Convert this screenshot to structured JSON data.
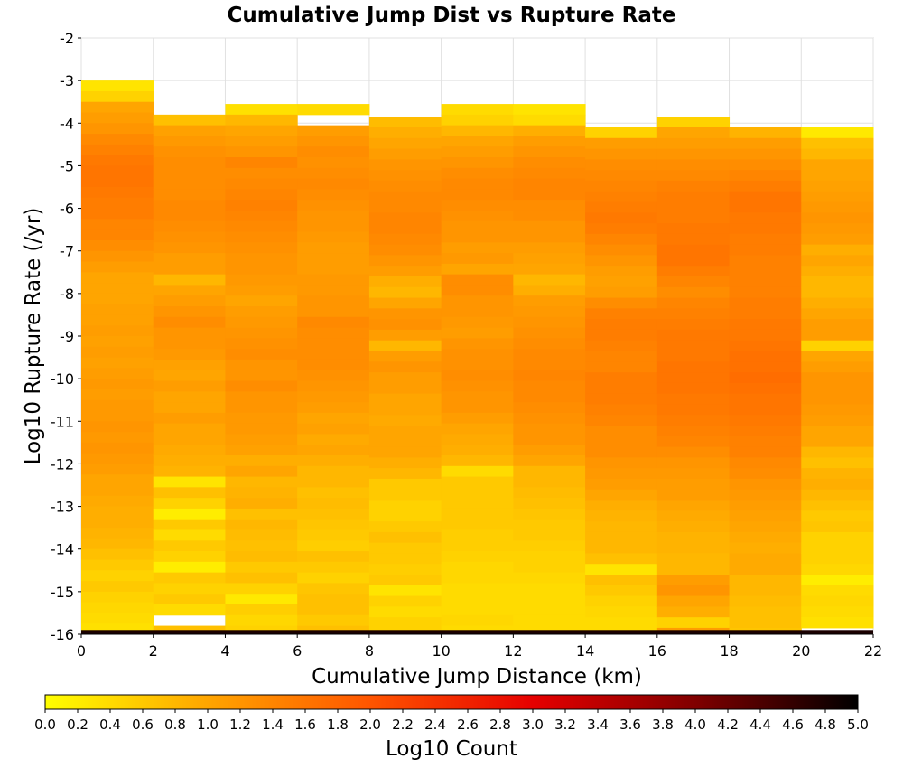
{
  "chart_data": {
    "type": "heatmap",
    "title": "Cumulative Jump Dist vs Rupture Rate",
    "xlabel": "Cumulative Jump Distance (km)",
    "ylabel": "Log10 Rupture Rate (/yr)",
    "xlim": [
      0,
      22
    ],
    "ylim": [
      -16,
      -2
    ],
    "x_ticks": [
      "0",
      "2",
      "4",
      "6",
      "8",
      "10",
      "12",
      "14",
      "16",
      "18",
      "20",
      "22"
    ],
    "y_ticks": [
      "-2",
      "-3",
      "-4",
      "-5",
      "-6",
      "-7",
      "-8",
      "-9",
      "-10",
      "-11",
      "-12",
      "-13",
      "-14",
      "-15",
      "-16"
    ],
    "x_bin_edges": [
      0,
      2,
      4,
      6,
      8,
      10,
      12,
      14,
      16,
      18,
      20,
      22
    ],
    "y_bin_size": 0.25,
    "colorbar": {
      "label": "Log10 Count",
      "range": [
        0,
        5
      ],
      "ticks": [
        "0.0",
        "0.2",
        "0.4",
        "0.6",
        "0.8",
        "1.0",
        "1.2",
        "1.4",
        "1.6",
        "1.8",
        "2.0",
        "2.2",
        "2.4",
        "2.6",
        "2.8",
        "3.0",
        "3.2",
        "3.4",
        "3.6",
        "3.8",
        "4.0",
        "4.2",
        "4.4",
        "4.6",
        "4.8",
        "5.0"
      ],
      "colors": [
        "#ffff00",
        "#ffa500",
        "#ff5500",
        "#e60000",
        "#800000",
        "#000000"
      ]
    },
    "columns": [
      {
        "x_range": [
          0,
          2
        ],
        "y_top": -3.0,
        "values": [
          0.3,
          0.5,
          1.0,
          1.1,
          1.2,
          1.35,
          1.45,
          1.55,
          1.6,
          1.6,
          1.55,
          1.5,
          1.5,
          1.4,
          1.4,
          1.3,
          1.2,
          1.1,
          1.0,
          1.0,
          1.0,
          1.05,
          1.05,
          1.1,
          1.05,
          1.1,
          1.05,
          1.1,
          1.15,
          1.1,
          1.15,
          1.15,
          1.2,
          1.15,
          1.2,
          1.15,
          1.1,
          1.0,
          1.0,
          0.95,
          0.9,
          0.9,
          0.85,
          0.8,
          0.7,
          0.6,
          0.5,
          0.6,
          0.5,
          0.45,
          0.4,
          0.35
        ]
      },
      {
        "x_range": [
          2,
          4
        ],
        "y_top": -3.8,
        "values": [
          0.7,
          1.05,
          1.15,
          1.25,
          1.3,
          1.3,
          1.3,
          1.3,
          1.35,
          1.35,
          1.3,
          1.25,
          1.2,
          1.1,
          1.1,
          0.8,
          1.0,
          1.1,
          1.2,
          1.3,
          1.2,
          1.2,
          1.15,
          1.05,
          1.0,
          1.1,
          1.0,
          1.0,
          1.1,
          1.0,
          1.0,
          0.95,
          0.9,
          0.85,
          0.3,
          0.7,
          0.5,
          0.2,
          0.6,
          0.4,
          0.6,
          0.5,
          0.2,
          0.6,
          0.5,
          0.6,
          0.4,
          -1,
          0.7,
          0.55,
          0.5
        ]
      },
      {
        "x_range": [
          4,
          6
        ],
        "y_top": -3.55,
        "values": [
          0.35,
          0.8,
          1.0,
          1.1,
          1.2,
          1.4,
          1.3,
          1.35,
          1.4,
          1.45,
          1.4,
          1.35,
          1.3,
          1.25,
          1.2,
          1.2,
          1.15,
          1.1,
          1.0,
          1.1,
          1.15,
          1.2,
          1.25,
          1.3,
          1.2,
          1.2,
          1.3,
          1.2,
          1.2,
          1.15,
          1.15,
          1.1,
          1.05,
          0.9,
          1.0,
          0.8,
          0.85,
          0.9,
          0.7,
          0.8,
          0.75,
          0.7,
          0.75,
          0.6,
          0.7,
          0.5,
          0.25,
          0.55,
          0.45,
          0.5,
          -1,
          -1
        ]
      },
      {
        "x_range": [
          6,
          8
        ],
        "y_top": -3.55,
        "values": [
          0.4,
          -1,
          1.1,
          1.2,
          1.3,
          1.25,
          1.3,
          1.35,
          1.3,
          1.25,
          1.2,
          1.2,
          1.15,
          1.1,
          1.1,
          1.1,
          1.15,
          1.15,
          1.2,
          1.2,
          1.35,
          1.3,
          1.3,
          1.3,
          1.3,
          1.25,
          1.2,
          1.15,
          1.1,
          1.0,
          1.05,
          0.95,
          1.0,
          0.9,
          0.8,
          0.8,
          0.7,
          0.75,
          0.7,
          0.65,
          0.6,
          0.55,
          0.7,
          0.6,
          0.5,
          0.65,
          0.7,
          0.7,
          0.6,
          0.7,
          0.35,
          0.35
        ]
      },
      {
        "x_range": [
          8,
          10
        ],
        "y_top": -3.85,
        "values": [
          0.75,
          0.9,
          1.0,
          1.1,
          1.2,
          1.25,
          1.3,
          1.35,
          1.35,
          1.4,
          1.4,
          1.35,
          1.3,
          1.2,
          1.1,
          0.9,
          0.8,
          1.0,
          1.2,
          1.25,
          1.1,
          0.8,
          1.1,
          1.2,
          1.1,
          1.1,
          1.0,
          1.0,
          0.95,
          1.0,
          1.0,
          1.0,
          0.9,
          0.8,
          0.6,
          0.6,
          0.5,
          0.5,
          0.6,
          0.7,
          0.6,
          0.6,
          0.55,
          0.6,
          0.3,
          0.5,
          0.4,
          0.5,
          0.5,
          0.55,
          0.35
        ]
      },
      {
        "x_range": [
          10,
          12
        ],
        "y_top": -3.55,
        "values": [
          0.4,
          0.5,
          0.8,
          1.0,
          1.1,
          1.2,
          1.3,
          1.35,
          1.35,
          1.3,
          1.25,
          1.2,
          1.2,
          1.1,
          1.15,
          1.0,
          1.3,
          1.3,
          1.2,
          1.2,
          1.15,
          1.1,
          1.2,
          1.25,
          1.25,
          1.3,
          1.25,
          1.2,
          1.2,
          1.1,
          1.0,
          0.95,
          0.9,
          0.8,
          0.4,
          0.6,
          0.6,
          0.6,
          0.6,
          0.6,
          0.55,
          0.55,
          0.5,
          0.45,
          0.45,
          0.4,
          0.4,
          0.4,
          0.45,
          0.4,
          0.3,
          0.3
        ]
      },
      {
        "x_range": [
          12,
          14
        ],
        "y_top": -3.55,
        "values": [
          0.3,
          0.4,
          0.9,
          1.1,
          1.2,
          1.3,
          1.35,
          1.4,
          1.4,
          1.3,
          1.3,
          1.2,
          1.2,
          1.1,
          1.05,
          1.0,
          0.8,
          0.9,
          1.1,
          1.15,
          1.2,
          1.25,
          1.3,
          1.35,
          1.35,
          1.4,
          1.35,
          1.35,
          1.3,
          1.25,
          1.2,
          1.2,
          1.1,
          1.0,
          0.8,
          0.8,
          0.75,
          0.7,
          0.65,
          0.6,
          0.6,
          0.55,
          0.5,
          0.5,
          0.45,
          0.4,
          0.4,
          0.4,
          0.4,
          0.4,
          0.35,
          0.3
        ]
      },
      {
        "x_range": [
          14,
          16
        ],
        "y_top": -4.1,
        "values": [
          0.5,
          1.1,
          1.2,
          1.3,
          1.35,
          1.4,
          1.45,
          1.5,
          1.55,
          1.5,
          1.4,
          1.3,
          1.2,
          1.1,
          1.05,
          1.1,
          1.3,
          1.45,
          1.5,
          1.5,
          1.45,
          1.4,
          1.4,
          1.5,
          1.5,
          1.5,
          1.45,
          1.4,
          1.3,
          1.3,
          1.3,
          1.2,
          1.15,
          1.1,
          1.0,
          0.9,
          0.85,
          0.8,
          0.8,
          0.8,
          0.7,
          0.3,
          0.7,
          0.6,
          0.5,
          0.45,
          0.4,
          0.4,
          0.35,
          0.4
        ]
      },
      {
        "x_range": [
          16,
          18
        ],
        "y_top": -3.85,
        "values": [
          0.5,
          1.0,
          1.1,
          1.2,
          1.3,
          1.35,
          1.45,
          1.5,
          1.5,
          1.5,
          1.55,
          1.55,
          1.6,
          1.6,
          1.5,
          1.4,
          1.3,
          1.4,
          1.45,
          1.5,
          1.55,
          1.55,
          1.55,
          1.6,
          1.6,
          1.6,
          1.55,
          1.55,
          1.5,
          1.45,
          1.4,
          1.3,
          1.2,
          1.15,
          1.1,
          1.1,
          1.0,
          0.95,
          0.9,
          0.85,
          0.85,
          0.8,
          0.8,
          1.1,
          1.2,
          1.0,
          0.9,
          0.5,
          1.1,
          1.05
        ]
      },
      {
        "x_range": [
          18,
          20
        ],
        "y_top": -4.1,
        "values": [
          0.85,
          1.1,
          1.2,
          1.3,
          1.4,
          1.5,
          1.6,
          1.6,
          1.55,
          1.55,
          1.5,
          1.5,
          1.45,
          1.45,
          1.45,
          1.45,
          1.5,
          1.5,
          1.55,
          1.55,
          1.6,
          1.65,
          1.65,
          1.7,
          1.65,
          1.6,
          1.6,
          1.55,
          1.5,
          1.45,
          1.45,
          1.35,
          1.3,
          1.2,
          1.15,
          1.1,
          1.05,
          1.0,
          0.95,
          0.9,
          0.95,
          0.95,
          0.8,
          0.8,
          0.75,
          0.7,
          0.7,
          0.65,
          0.7,
          0.7
        ]
      },
      {
        "x_range": [
          20,
          22
        ],
        "y_top": -4.1,
        "values": [
          0.25,
          0.7,
          0.8,
          1.0,
          1.0,
          1.05,
          1.1,
          1.15,
          1.2,
          1.15,
          1.1,
          0.9,
          1.0,
          0.9,
          0.8,
          0.8,
          0.9,
          1.0,
          1.1,
          1.1,
          0.5,
          1.0,
          1.1,
          1.2,
          1.2,
          1.2,
          1.15,
          1.1,
          1.0,
          1.0,
          0.8,
          0.7,
          0.85,
          0.9,
          0.8,
          0.7,
          0.6,
          0.65,
          0.5,
          0.5,
          0.5,
          0.45,
          0.2,
          0.4,
          0.45,
          0.4,
          0.35,
          -1,
          0.4,
          0.3
        ]
      }
    ],
    "bottom_row": {
      "y_range": [
        -16,
        -15.9
      ],
      "value": 4.8
    }
  }
}
